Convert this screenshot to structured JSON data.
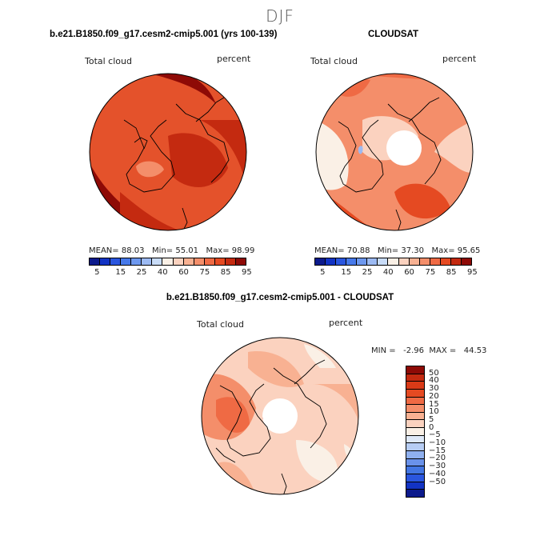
{
  "figure": {
    "season": "DJF",
    "panel_a": {
      "title": "b.e21.B1850.f09_g17.cesm2-cmip5.001 (yrs 100-139)",
      "field": "Total cloud",
      "units": "percent",
      "stats": {
        "mean_label": "MEAN=",
        "mean": "88.03",
        "min_label": "Min=",
        "min": "55.01",
        "max_label": "Max=",
        "max": "98.99"
      }
    },
    "panel_b": {
      "title": "CLOUDSAT",
      "field": "Total cloud",
      "units": "percent",
      "stats": {
        "mean_label": "MEAN=",
        "mean": "70.88",
        "min_label": "Min=",
        "min": "37.30",
        "max_label": "Max=",
        "max": "95.65"
      }
    },
    "panel_c": {
      "title": "b.e21.B1850.f09_g17.cesm2-cmip5.001 - CLOUDSAT",
      "field": "Total cloud",
      "units": "percent",
      "minmax": "MIN =   -2.96  MAX =   44.53"
    }
  },
  "colorbar_abs": {
    "colors": [
      "#0c1a8c",
      "#1233c4",
      "#2a56df",
      "#4679ea",
      "#6d98ef",
      "#9cbaf3",
      "#c9dcf8",
      "#faf0e6",
      "#fbd2bf",
      "#f8b192",
      "#f48e6a",
      "#ef6a44",
      "#e54a22",
      "#c42a10",
      "#8e0a06"
    ],
    "tick_labels": [
      "5",
      "15",
      "25",
      "40",
      "60",
      "75",
      "85",
      "95"
    ]
  },
  "colorbar_diff": {
    "colors": [
      "#8e0a06",
      "#c42a10",
      "#d93a17",
      "#e54a22",
      "#ef6a44",
      "#f48e6a",
      "#f8b192",
      "#fbd2bf",
      "#faf0e6",
      "#dfe9f8",
      "#b7cdf4",
      "#8fb0ef",
      "#6a92ea",
      "#4376e3",
      "#2a56df",
      "#1233c4",
      "#0c1a8c"
    ],
    "tick_labels": [
      "50",
      "40",
      "30",
      "20",
      "15",
      "10",
      "5",
      "0",
      "−5",
      "−10",
      "−15",
      "−20",
      "−30",
      "−40",
      "−50"
    ]
  }
}
